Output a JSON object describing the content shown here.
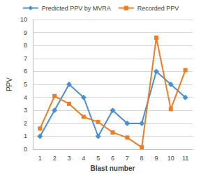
{
  "chart_data": {
    "type": "line",
    "x_label": "Blast number",
    "y_label": "PPV",
    "categories": [
      "1",
      "2",
      "3",
      "4",
      "5",
      "6",
      "7",
      "8",
      "9",
      "10",
      "11"
    ],
    "series": [
      {
        "name": "Predicted PPV by MVRA",
        "color": "#4a8fd4",
        "marker": "diamond",
        "values": [
          1,
          3,
          5,
          4,
          1,
          3,
          2,
          2,
          6,
          5,
          4
        ]
      },
      {
        "name": "Recorded PPV",
        "color": "#f07c22",
        "marker": "square",
        "values": [
          1.6,
          4.1,
          3.5,
          2.5,
          2.1,
          1.3,
          0.9,
          0.15,
          8.6,
          3.1,
          6.1
        ]
      }
    ],
    "ylim": [
      0,
      10
    ],
    "yticks": [
      0,
      1,
      2,
      3,
      4,
      5,
      6,
      7,
      8,
      9,
      10
    ],
    "grid": true,
    "legend": "top"
  }
}
